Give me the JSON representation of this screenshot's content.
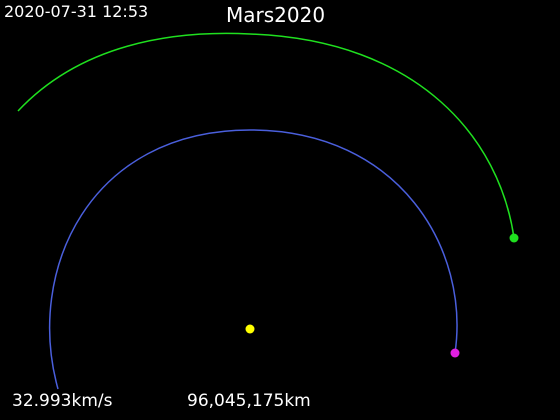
{
  "timestamp": "2020-07-31 12:53",
  "title": "Mars2020",
  "readouts": {
    "speed": "32.993km/s",
    "distance": "96,045,175km"
  },
  "colors": {
    "background": "#000000",
    "text": "#ffffff",
    "earth_orbit": "#4a5fdc",
    "spacecraft_trajectory": "#1fe01f",
    "sun": "#ffff00",
    "earth": "#e01fe0",
    "spacecraft": "#1fe01f"
  }
}
